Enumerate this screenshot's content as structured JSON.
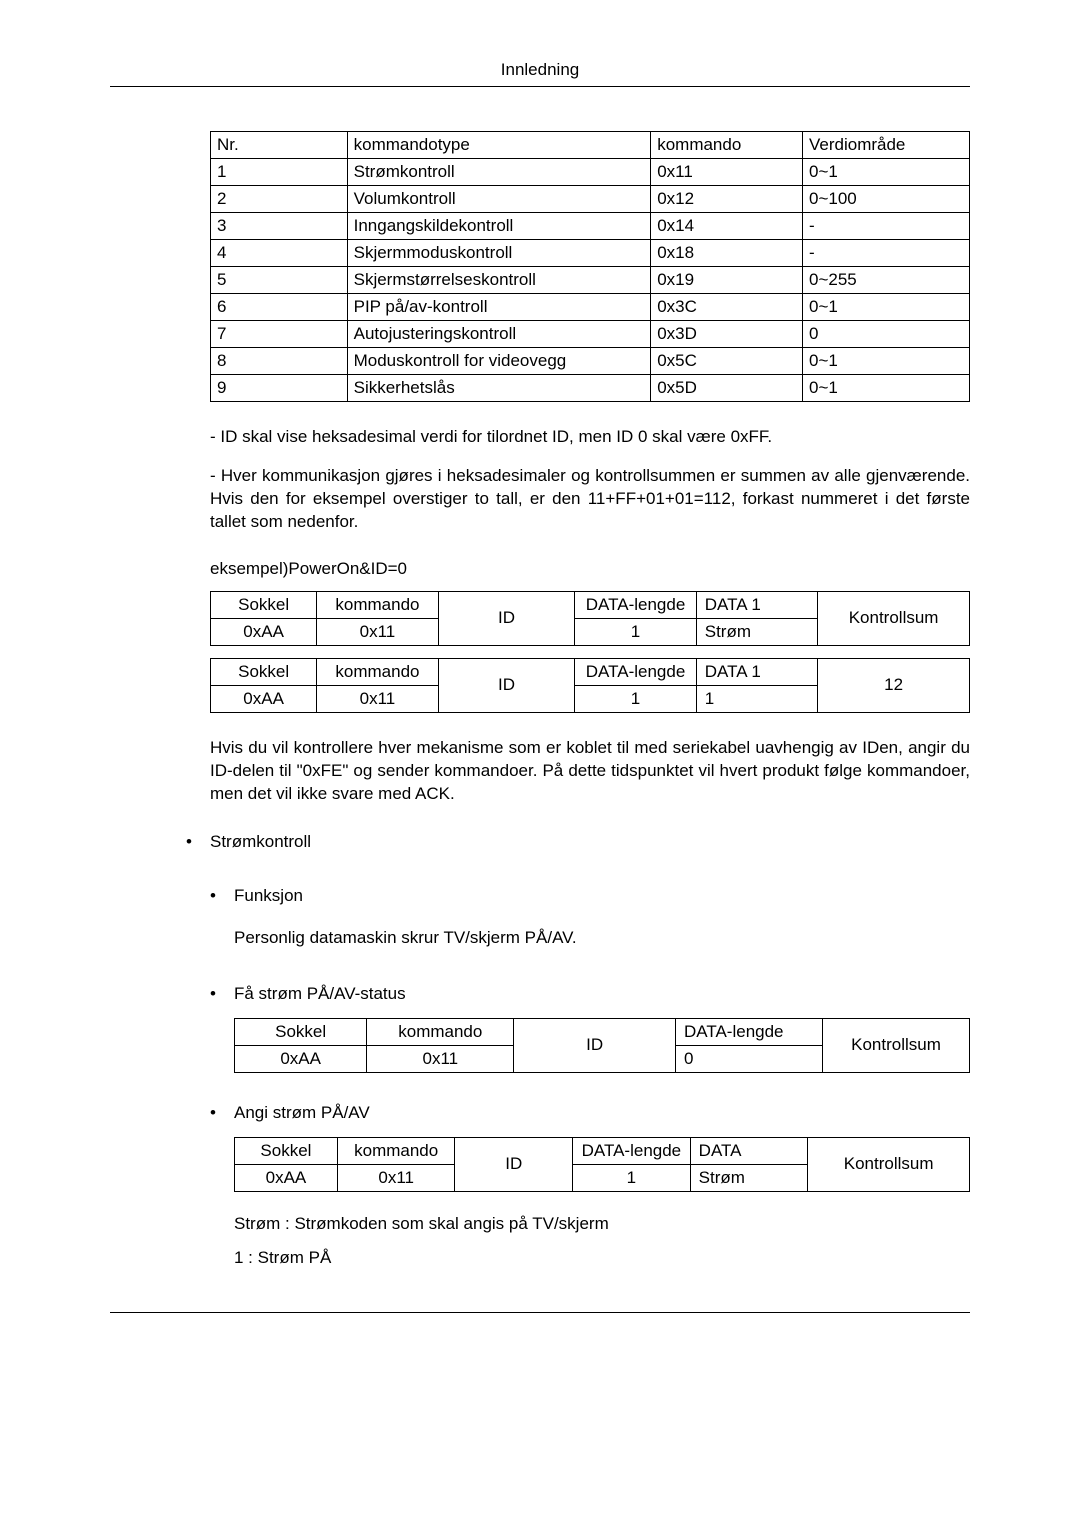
{
  "page_header": "Innledning",
  "cmd_table": {
    "columns": [
      "Nr.",
      "kommandotype",
      "kommando",
      "Verdiområde"
    ],
    "rows": [
      [
        "1",
        "Strømkontroll",
        "0x11",
        "0~1"
      ],
      [
        "2",
        "Volumkontroll",
        "0x12",
        "0~100"
      ],
      [
        "3",
        "Inngangskildekontroll",
        "0x14",
        "-"
      ],
      [
        "4",
        "Skjermmoduskontroll",
        "0x18",
        "-"
      ],
      [
        "5",
        "Skjermstørrelseskontroll",
        "0x19",
        "0~255"
      ],
      [
        "6",
        "PIP på/av-kontroll",
        "0x3C",
        "0~1"
      ],
      [
        "7",
        "Autojusteringskontroll",
        "0x3D",
        "0"
      ],
      [
        "8",
        "Moduskontroll for videovegg",
        "0x5C",
        "0~1"
      ],
      [
        "9",
        "Sikkerhetslås",
        "0x5D",
        "0~1"
      ]
    ]
  },
  "para1": "- ID skal vise heksadesimal verdi for tilordnet ID, men ID 0 skal være 0xFF.",
  "para2": "- Hver kommunikasjon gjøres i heksadesimaler og kontrollsummen er summen av alle gjenværende. Hvis den for eksempel overstiger to tall, er den 11+FF+01+01=112, forkast nummeret i det første tallet som nedenfor.",
  "example_line": "eksempel)PowerOn&ID=0",
  "packet1": {
    "headers": [
      "Sokkel",
      "kommando",
      "ID",
      "DATA-lengde",
      "DATA 1",
      "Kontrollsum"
    ],
    "row": [
      "0xAA",
      "0x11",
      "",
      "1",
      "Strøm",
      ""
    ]
  },
  "packet2": {
    "headers": [
      "Sokkel",
      "kommando",
      "ID",
      "DATA-lengde",
      "DATA 1",
      "12"
    ],
    "row": [
      "0xAA",
      "0x11",
      "",
      "1",
      "1",
      ""
    ]
  },
  "para3": "Hvis du vil kontrollere hver mekanisme som er koblet til med seriekabel uavhengig av IDen, angir du ID-delen til \"0xFE\" og sender kommandoer. På dette tidspunktet vil hvert produkt følge kommandoer, men det vil ikke svare med ACK.",
  "bullet_main": "Strømkontroll",
  "sub_funksjon": "Funksjon",
  "sub_funksjon_desc": "Personlig datamaskin skrur TV/skjerm PÅ/AV.",
  "sub_get": "Få strøm PÅ/AV-status",
  "status_table": {
    "headers": [
      "Sokkel",
      "kommando",
      "ID",
      "DATA-lengde",
      "Kontrollsum"
    ],
    "row": [
      "0xAA",
      "0x11",
      "",
      "0",
      ""
    ]
  },
  "sub_set": "Angi strøm PÅ/AV",
  "set_table": {
    "headers": [
      "Sokkel",
      "kommando",
      "ID",
      "DATA-lengde",
      "DATA",
      "Kontrollsum"
    ],
    "row": [
      "0xAA",
      "0x11",
      "",
      "1",
      "Strøm",
      ""
    ]
  },
  "footer_line1": "Strøm : Strømkoden som skal angis på TV/skjerm",
  "footer_line2": "1 : Strøm PÅ"
}
